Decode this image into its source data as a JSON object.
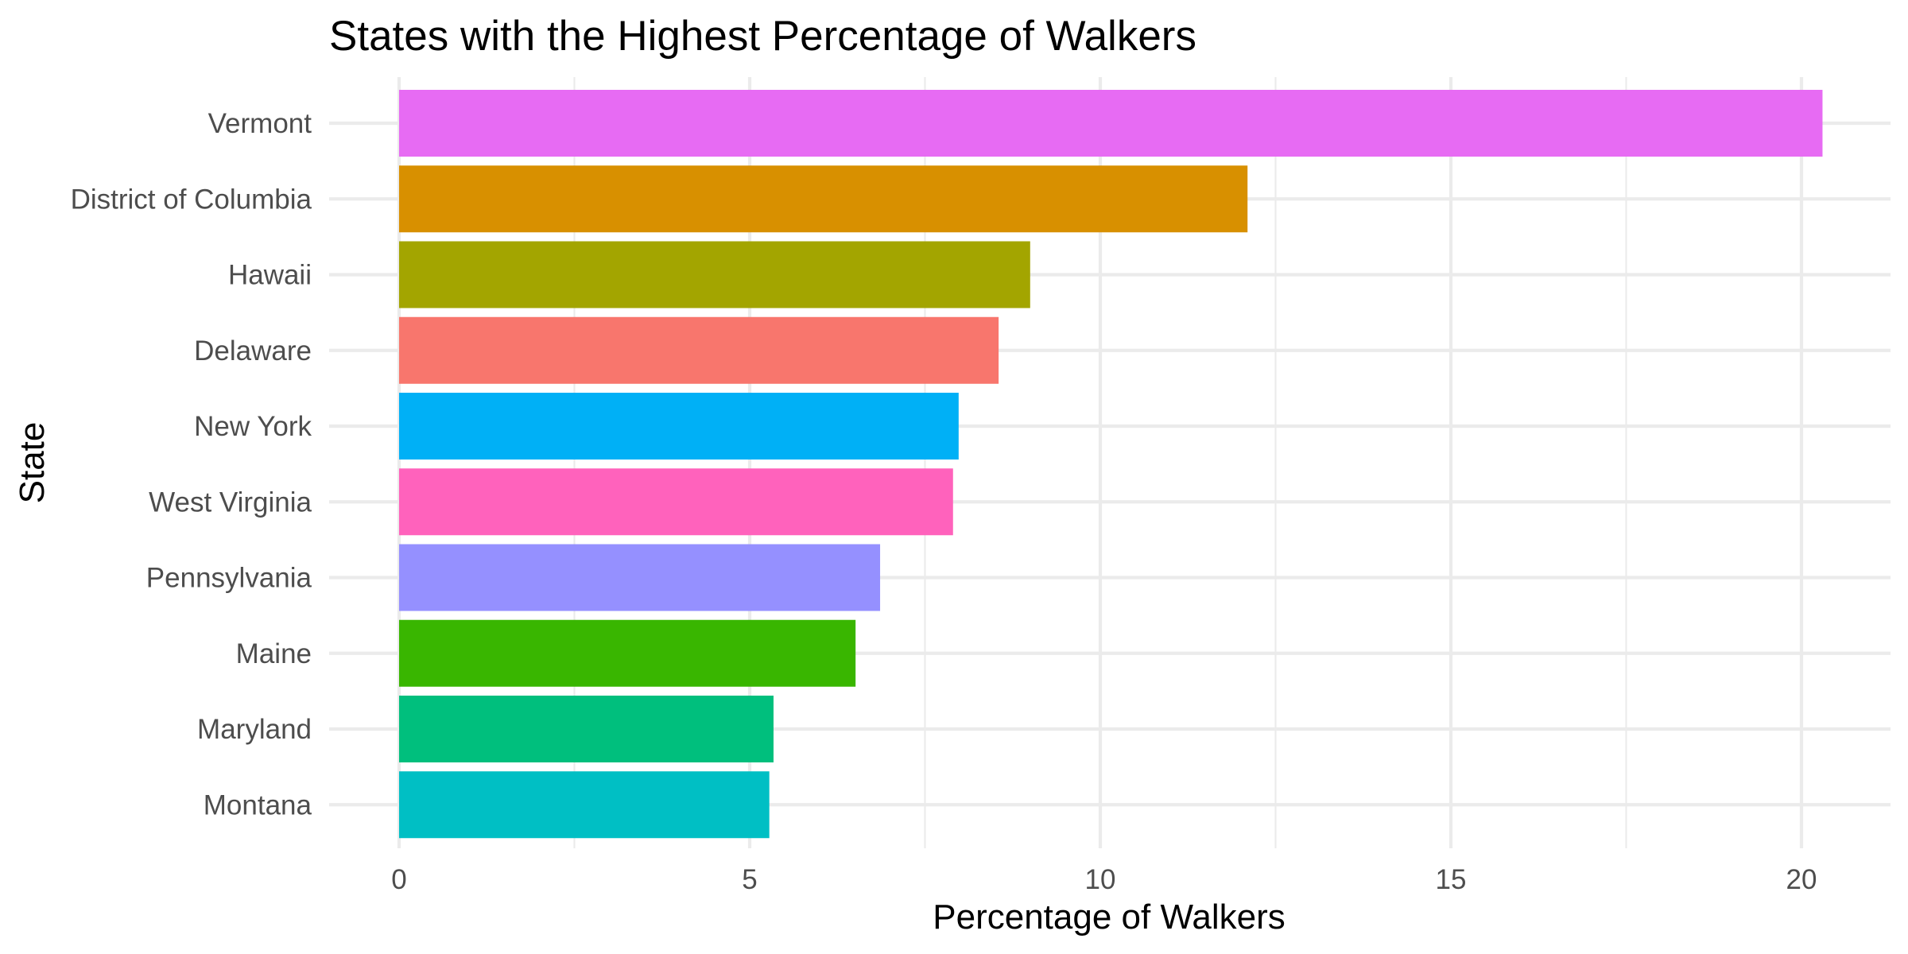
{
  "chart_data": {
    "type": "bar",
    "orientation": "horizontal",
    "title": "States with the Highest Percentage of Walkers",
    "xlabel": "Percentage of Walkers",
    "ylabel": "State",
    "categories": [
      "Vermont",
      "District of Columbia",
      "Hawaii",
      "Delaware",
      "New York",
      "West Virginia",
      "Pennsylvania",
      "Maine",
      "Maryland",
      "Montana"
    ],
    "values": [
      20.3,
      12.1,
      9.0,
      8.55,
      7.98,
      7.9,
      6.86,
      6.51,
      5.34,
      5.28
    ],
    "colors": [
      "#E76BF3",
      "#D89000",
      "#A3A500",
      "#F8766D",
      "#00B0F6",
      "#FF62BC",
      "#9590FF",
      "#39B600",
      "#00BF7D",
      "#00BFC4"
    ],
    "x_ticks": [
      "0",
      "5",
      "10",
      "15",
      "20"
    ],
    "x_tick_values": [
      0,
      5,
      10,
      15,
      20
    ],
    "xlim": [
      0,
      21.3
    ],
    "grid": true,
    "legend": "none"
  }
}
